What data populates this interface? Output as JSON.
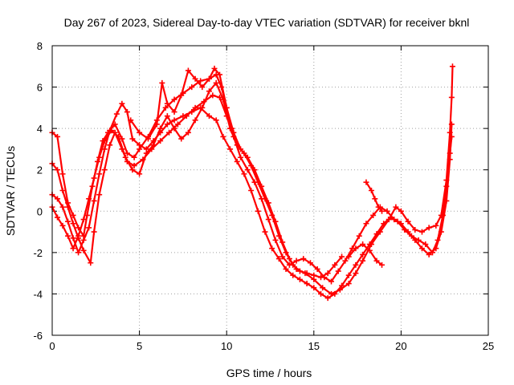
{
  "chart_data": {
    "type": "scatter",
    "title": "Day 267 of 2023, Sidereal Day-to-day VTEC variation (SDTVAR) for receiver bknl",
    "xlabel": "GPS time / hours",
    "ylabel": "SDTVAR / TECUs",
    "xlim": [
      0,
      25
    ],
    "ylim": [
      -6,
      8
    ],
    "xticks": [
      "0",
      "5",
      "10",
      "15",
      "20",
      "25"
    ],
    "yticks": [
      "-6",
      "-4",
      "-2",
      "0",
      "2",
      "4",
      "6",
      "8"
    ],
    "grid": true,
    "marker": "+",
    "color": "#ff0000",
    "series": [
      {
        "name": "track-1",
        "points": [
          [
            0.0,
            3.8
          ],
          [
            0.3,
            3.6
          ],
          [
            0.6,
            1.8
          ],
          [
            0.9,
            0.4
          ],
          [
            1.2,
            -0.2
          ],
          [
            1.5,
            -0.8
          ],
          [
            1.8,
            -1.2
          ],
          [
            2.0,
            -0.2
          ],
          [
            2.3,
            1.2
          ],
          [
            2.6,
            2.4
          ],
          [
            2.9,
            3.4
          ],
          [
            3.2,
            3.8
          ],
          [
            3.6,
            4.2
          ],
          [
            4.0,
            3.5
          ],
          [
            4.3,
            2.8
          ],
          [
            4.7,
            2.6
          ],
          [
            5.0,
            3.0
          ],
          [
            5.5,
            3.6
          ],
          [
            6.0,
            4.4
          ],
          [
            6.5,
            5.0
          ],
          [
            7.0,
            5.4
          ],
          [
            7.5,
            5.7
          ],
          [
            8.0,
            6.0
          ],
          [
            8.5,
            6.3
          ],
          [
            9.0,
            6.4
          ],
          [
            9.4,
            6.6
          ],
          [
            9.7,
            6.0
          ],
          [
            10.0,
            5.0
          ],
          [
            10.4,
            3.8
          ],
          [
            10.8,
            3.0
          ],
          [
            11.2,
            2.6
          ],
          [
            11.6,
            2.0
          ],
          [
            12.0,
            1.2
          ],
          [
            12.4,
            0.4
          ],
          [
            12.8,
            -0.5
          ],
          [
            13.2,
            -1.5
          ],
          [
            13.6,
            -2.3
          ],
          [
            14.0,
            -2.8
          ],
          [
            14.5,
            -3.0
          ],
          [
            15.0,
            -3.3
          ],
          [
            15.5,
            -3.7
          ],
          [
            16.0,
            -4.0
          ],
          [
            16.5,
            -3.8
          ],
          [
            17.0,
            -3.5
          ],
          [
            17.4,
            -3.0
          ],
          [
            17.8,
            -2.4
          ],
          [
            18.3,
            -1.6
          ],
          [
            18.8,
            -1.0
          ],
          [
            19.3,
            -0.4
          ],
          [
            19.7,
            0.2
          ],
          [
            20.0,
            0.0
          ],
          [
            20.4,
            -0.5
          ],
          [
            20.8,
            -0.9
          ],
          [
            21.2,
            -1.0
          ],
          [
            21.6,
            -0.8
          ],
          [
            22.0,
            -0.7
          ],
          [
            22.3,
            -0.2
          ],
          [
            22.6,
            1.5
          ],
          [
            22.8,
            3.8
          ],
          [
            22.9,
            5.5
          ],
          [
            22.95,
            7.0
          ]
        ]
      },
      {
        "name": "track-2",
        "points": [
          [
            0.0,
            2.3
          ],
          [
            0.3,
            2.0
          ],
          [
            0.6,
            1.0
          ],
          [
            0.9,
            0.2
          ],
          [
            1.2,
            -0.6
          ],
          [
            1.5,
            -1.3
          ],
          [
            1.8,
            -1.9
          ],
          [
            2.2,
            -2.5
          ],
          [
            2.4,
            -1.0
          ],
          [
            2.7,
            0.8
          ],
          [
            3.0,
            2.0
          ],
          [
            3.3,
            3.2
          ],
          [
            3.6,
            3.8
          ],
          [
            4.0,
            3.0
          ],
          [
            4.3,
            2.4
          ],
          [
            4.7,
            2.2
          ],
          [
            5.2,
            2.5
          ],
          [
            5.7,
            3.0
          ],
          [
            6.2,
            3.4
          ],
          [
            6.7,
            3.8
          ],
          [
            7.2,
            4.2
          ],
          [
            7.7,
            4.6
          ],
          [
            8.2,
            5.0
          ],
          [
            8.7,
            5.3
          ],
          [
            9.2,
            5.6
          ],
          [
            9.6,
            5.5
          ],
          [
            10.0,
            4.6
          ],
          [
            10.4,
            3.6
          ],
          [
            10.8,
            2.6
          ],
          [
            11.2,
            2.0
          ],
          [
            11.6,
            1.4
          ],
          [
            12.0,
            0.6
          ],
          [
            12.4,
            -0.4
          ],
          [
            12.8,
            -1.4
          ],
          [
            13.2,
            -2.2
          ],
          [
            13.6,
            -2.6
          ],
          [
            14.0,
            -2.4
          ],
          [
            14.4,
            -2.3
          ],
          [
            14.8,
            -2.5
          ],
          [
            15.2,
            -2.8
          ],
          [
            15.6,
            -3.2
          ],
          [
            16.0,
            -3.4
          ],
          [
            16.4,
            -2.9
          ],
          [
            16.8,
            -2.4
          ],
          [
            17.2,
            -1.8
          ],
          [
            17.6,
            -1.2
          ],
          [
            18.0,
            -0.6
          ],
          [
            18.4,
            -0.2
          ],
          [
            18.8,
            0.2
          ],
          [
            19.2,
            0.0
          ],
          [
            19.6,
            -0.4
          ],
          [
            20.0,
            -0.6
          ],
          [
            20.4,
            -1.0
          ],
          [
            20.8,
            -1.4
          ],
          [
            21.2,
            -1.8
          ],
          [
            21.6,
            -2.1
          ],
          [
            22.0,
            -1.8
          ],
          [
            22.3,
            -1.0
          ],
          [
            22.6,
            0.5
          ],
          [
            22.8,
            2.5
          ],
          [
            22.9,
            4.2
          ]
        ]
      },
      {
        "name": "track-3",
        "points": [
          [
            0.0,
            0.8
          ],
          [
            0.3,
            0.6
          ],
          [
            0.6,
            0.2
          ],
          [
            0.9,
            -0.5
          ],
          [
            1.2,
            -1.3
          ],
          [
            1.5,
            -2.0
          ],
          [
            1.8,
            -1.4
          ],
          [
            2.1,
            -0.8
          ],
          [
            2.4,
            0.5
          ],
          [
            2.7,
            1.8
          ],
          [
            3.0,
            3.0
          ],
          [
            3.3,
            3.9
          ],
          [
            3.7,
            4.7
          ],
          [
            4.0,
            5.2
          ],
          [
            4.3,
            4.8
          ],
          [
            4.6,
            3.5
          ],
          [
            5.0,
            3.2
          ],
          [
            5.4,
            3.0
          ],
          [
            5.8,
            3.4
          ],
          [
            6.2,
            3.8
          ],
          [
            6.6,
            4.2
          ],
          [
            7.0,
            4.4
          ],
          [
            7.5,
            4.6
          ],
          [
            8.0,
            4.8
          ],
          [
            8.5,
            5.0
          ],
          [
            9.0,
            4.6
          ],
          [
            9.4,
            4.4
          ],
          [
            9.8,
            3.6
          ],
          [
            10.2,
            3.0
          ],
          [
            10.6,
            2.4
          ],
          [
            11.0,
            1.8
          ],
          [
            11.4,
            1.0
          ],
          [
            11.8,
            0.0
          ],
          [
            12.2,
            -1.0
          ],
          [
            12.6,
            -1.8
          ],
          [
            13.0,
            -2.3
          ],
          [
            13.4,
            -2.8
          ],
          [
            13.8,
            -3.1
          ],
          [
            14.2,
            -3.3
          ],
          [
            14.6,
            -3.5
          ],
          [
            15.0,
            -3.7
          ],
          [
            15.4,
            -4.0
          ],
          [
            15.8,
            -4.2
          ],
          [
            16.2,
            -4.0
          ],
          [
            16.6,
            -3.6
          ],
          [
            17.0,
            -3.1
          ],
          [
            17.4,
            -2.6
          ],
          [
            17.8,
            -2.1
          ],
          [
            18.2,
            -1.6
          ],
          [
            18.6,
            -1.1
          ],
          [
            19.0,
            -0.6
          ],
          [
            19.4,
            -0.3
          ],
          [
            19.8,
            -0.5
          ],
          [
            20.2,
            -0.9
          ],
          [
            20.6,
            -1.2
          ],
          [
            21.0,
            -1.4
          ],
          [
            21.4,
            -1.6
          ],
          [
            21.8,
            -2.0
          ],
          [
            22.1,
            -1.4
          ],
          [
            22.4,
            -0.2
          ],
          [
            22.6,
            1.2
          ],
          [
            22.8,
            2.8
          ],
          [
            22.9,
            3.6
          ]
        ]
      },
      {
        "name": "track-4",
        "points": [
          [
            0.0,
            0.2
          ],
          [
            0.3,
            -0.3
          ],
          [
            0.6,
            -0.7
          ],
          [
            0.9,
            -1.2
          ],
          [
            1.2,
            -1.8
          ],
          [
            1.5,
            -1.2
          ],
          [
            1.8,
            -0.4
          ],
          [
            2.1,
            0.6
          ],
          [
            2.4,
            1.6
          ],
          [
            2.7,
            2.6
          ],
          [
            3.0,
            3.4
          ],
          [
            3.4,
            3.9
          ],
          [
            3.8,
            3.6
          ],
          [
            4.2,
            2.6
          ],
          [
            4.6,
            2.0
          ],
          [
            5.0,
            1.8
          ],
          [
            5.4,
            2.8
          ],
          [
            5.8,
            3.2
          ],
          [
            6.2,
            4.0
          ],
          [
            6.6,
            4.6
          ],
          [
            7.0,
            4.0
          ],
          [
            7.4,
            3.5
          ],
          [
            7.8,
            3.8
          ],
          [
            8.2,
            4.4
          ],
          [
            8.6,
            5.0
          ],
          [
            9.0,
            5.8
          ],
          [
            9.4,
            6.2
          ],
          [
            9.8,
            5.4
          ],
          [
            10.2,
            4.0
          ],
          [
            10.6,
            3.2
          ],
          [
            11.0,
            2.8
          ],
          [
            11.4,
            2.2
          ],
          [
            11.8,
            1.4
          ],
          [
            12.2,
            0.6
          ],
          [
            12.6,
            -0.2
          ],
          [
            13.0,
            -1.2
          ],
          [
            13.4,
            -2.0
          ],
          [
            13.8,
            -2.6
          ],
          [
            14.2,
            -2.9
          ],
          [
            14.6,
            -3.0
          ],
          [
            15.0,
            -3.1
          ],
          [
            15.4,
            -3.2
          ],
          [
            15.8,
            -3.0
          ],
          [
            16.2,
            -2.6
          ],
          [
            16.6,
            -2.2
          ]
        ]
      },
      {
        "name": "track-5",
        "points": [
          [
            4.5,
            4.4
          ],
          [
            5.0,
            3.8
          ],
          [
            5.5,
            3.5
          ],
          [
            6.0,
            4.2
          ],
          [
            6.3,
            6.2
          ],
          [
            6.6,
            5.2
          ],
          [
            7.0,
            4.8
          ],
          [
            7.4,
            5.6
          ],
          [
            7.8,
            6.8
          ],
          [
            8.2,
            6.4
          ],
          [
            8.6,
            6.0
          ],
          [
            9.0,
            6.4
          ],
          [
            9.3,
            6.9
          ],
          [
            9.6,
            6.6
          ],
          [
            10.0,
            5.0
          ],
          [
            10.3,
            4.0
          ]
        ]
      },
      {
        "name": "track-6",
        "points": [
          [
            18.0,
            1.4
          ],
          [
            18.3,
            1.0
          ],
          [
            18.5,
            0.6
          ],
          [
            18.7,
            0.2
          ],
          [
            18.9,
            0.0
          ]
        ]
      },
      {
        "name": "track-7",
        "points": [
          [
            17.0,
            -2.2
          ],
          [
            17.4,
            -1.8
          ],
          [
            17.8,
            -1.6
          ],
          [
            18.2,
            -1.9
          ],
          [
            18.6,
            -2.4
          ],
          [
            18.9,
            -2.6
          ]
        ]
      }
    ]
  }
}
